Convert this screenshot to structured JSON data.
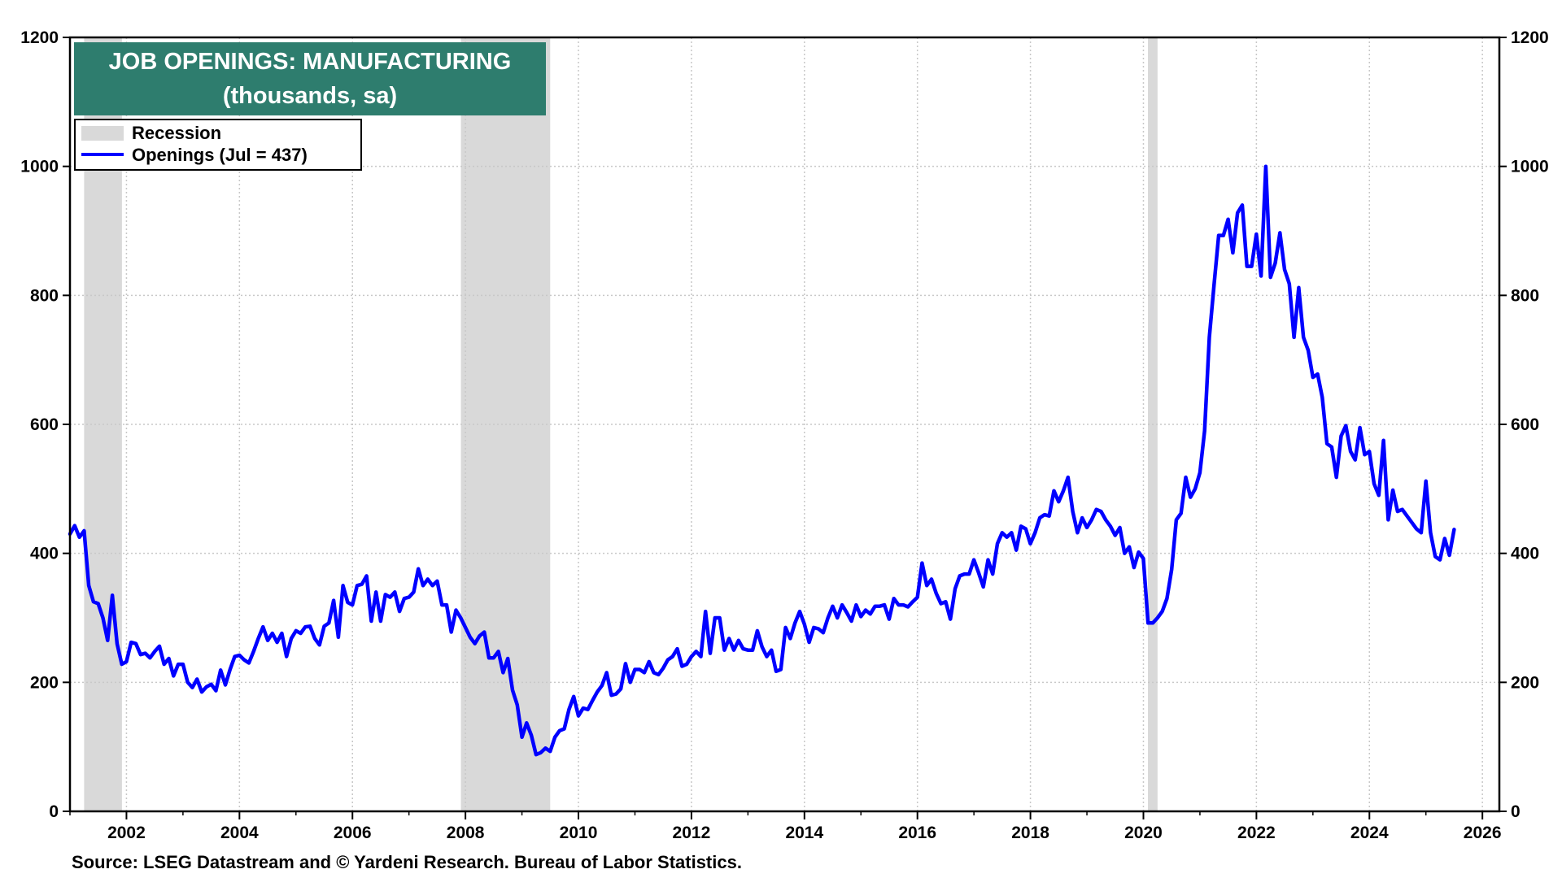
{
  "chart_data": {
    "type": "line",
    "title": "JOB OPENINGS: MANUFACTURING",
    "subtitle": "(thousands, sa)",
    "source": "Source: LSEG Datastream and © Yardeni Research. Bureau of Labor Statistics.",
    "xlim": [
      2001.0,
      2026.3
    ],
    "ylim": [
      0,
      1200
    ],
    "yticks": [
      0,
      200,
      400,
      600,
      800,
      1000,
      1200
    ],
    "xticks": [
      "2002",
      "2004",
      "2006",
      "2008",
      "2010",
      "2012",
      "2014",
      "2016",
      "2018",
      "2020",
      "2022",
      "2024",
      "2026"
    ],
    "grid": true,
    "legend_position": "top-left",
    "legend": [
      {
        "label": "Recession",
        "kind": "band",
        "color": "#d9d9d9"
      },
      {
        "label": "Openings (Jul = 437)",
        "kind": "line",
        "color": "#0000ff"
      }
    ],
    "colors": {
      "line": "#0000ff",
      "recession": "#d9d9d9",
      "title_bg": "#2e7d6e",
      "grid": "#c8c8c8"
    },
    "recessions": [
      [
        2001.25,
        2001.92
      ],
      [
        2007.92,
        2009.5
      ],
      [
        2020.08,
        2020.25
      ]
    ],
    "series": [
      {
        "name": "Openings",
        "start_year": 2001.0,
        "step": 0.08333,
        "values": [
          430,
          443,
          425,
          435,
          350,
          325,
          322,
          300,
          265,
          335,
          260,
          228,
          232,
          262,
          260,
          243,
          245,
          238,
          248,
          256,
          228,
          237,
          210,
          228,
          228,
          200,
          192,
          205,
          185,
          193,
          197,
          187,
          219,
          196,
          220,
          240,
          242,
          235,
          230,
          248,
          268,
          286,
          265,
          276,
          262,
          276,
          240,
          268,
          280,
          276,
          286,
          287,
          268,
          258,
          287,
          292,
          327,
          270,
          350,
          324,
          320,
          350,
          352,
          365,
          295,
          340,
          295,
          336,
          332,
          340,
          310,
          330,
          332,
          340,
          376,
          350,
          360,
          350,
          357,
          320,
          320,
          278,
          312,
          300,
          285,
          270,
          260,
          272,
          278,
          238,
          238,
          248,
          215,
          237,
          188,
          165,
          115,
          137,
          118,
          88,
          91,
          98,
          93,
          115,
          125,
          128,
          158,
          178,
          148,
          160,
          158,
          172,
          185,
          195,
          215,
          180,
          182,
          190,
          229,
          200,
          220,
          220,
          215,
          232,
          215,
          212,
          222,
          235,
          240,
          252,
          225,
          228,
          240,
          248,
          240,
          310,
          245,
          300,
          300,
          250,
          268,
          250,
          265,
          252,
          250,
          250,
          280,
          255,
          240,
          250,
          217,
          220,
          285,
          268,
          292,
          310,
          290,
          262,
          285,
          283,
          277,
          300,
          318,
          300,
          320,
          308,
          295,
          320,
          302,
          312,
          306,
          318,
          318,
          320,
          298,
          330,
          320,
          320,
          317,
          325,
          332,
          385,
          350,
          360,
          338,
          322,
          325,
          298,
          345,
          365,
          368,
          368,
          390,
          370,
          348,
          390,
          368,
          415,
          432,
          425,
          432,
          405,
          442,
          438,
          415,
          432,
          455,
          460,
          458,
          497,
          480,
          497,
          518,
          465,
          432,
          455,
          440,
          452,
          468,
          465,
          452,
          442,
          428,
          440,
          400,
          410,
          378,
          402,
          392,
          292,
          292,
          300,
          310,
          330,
          375,
          452,
          462,
          518,
          487,
          500,
          525,
          590,
          735,
          815,
          893,
          893,
          918,
          866,
          928,
          940,
          845,
          845,
          895,
          830,
          1000,
          828,
          850,
          897,
          840,
          818,
          735,
          812,
          735,
          715,
          673,
          678,
          642,
          570,
          565,
          518,
          582,
          598,
          558,
          545,
          595,
          553,
          558,
          508,
          490,
          575,
          452,
          498,
          465,
          468,
          458,
          448,
          438,
          432,
          512,
          432,
          395,
          390,
          423,
          397,
          437
        ]
      }
    ]
  }
}
